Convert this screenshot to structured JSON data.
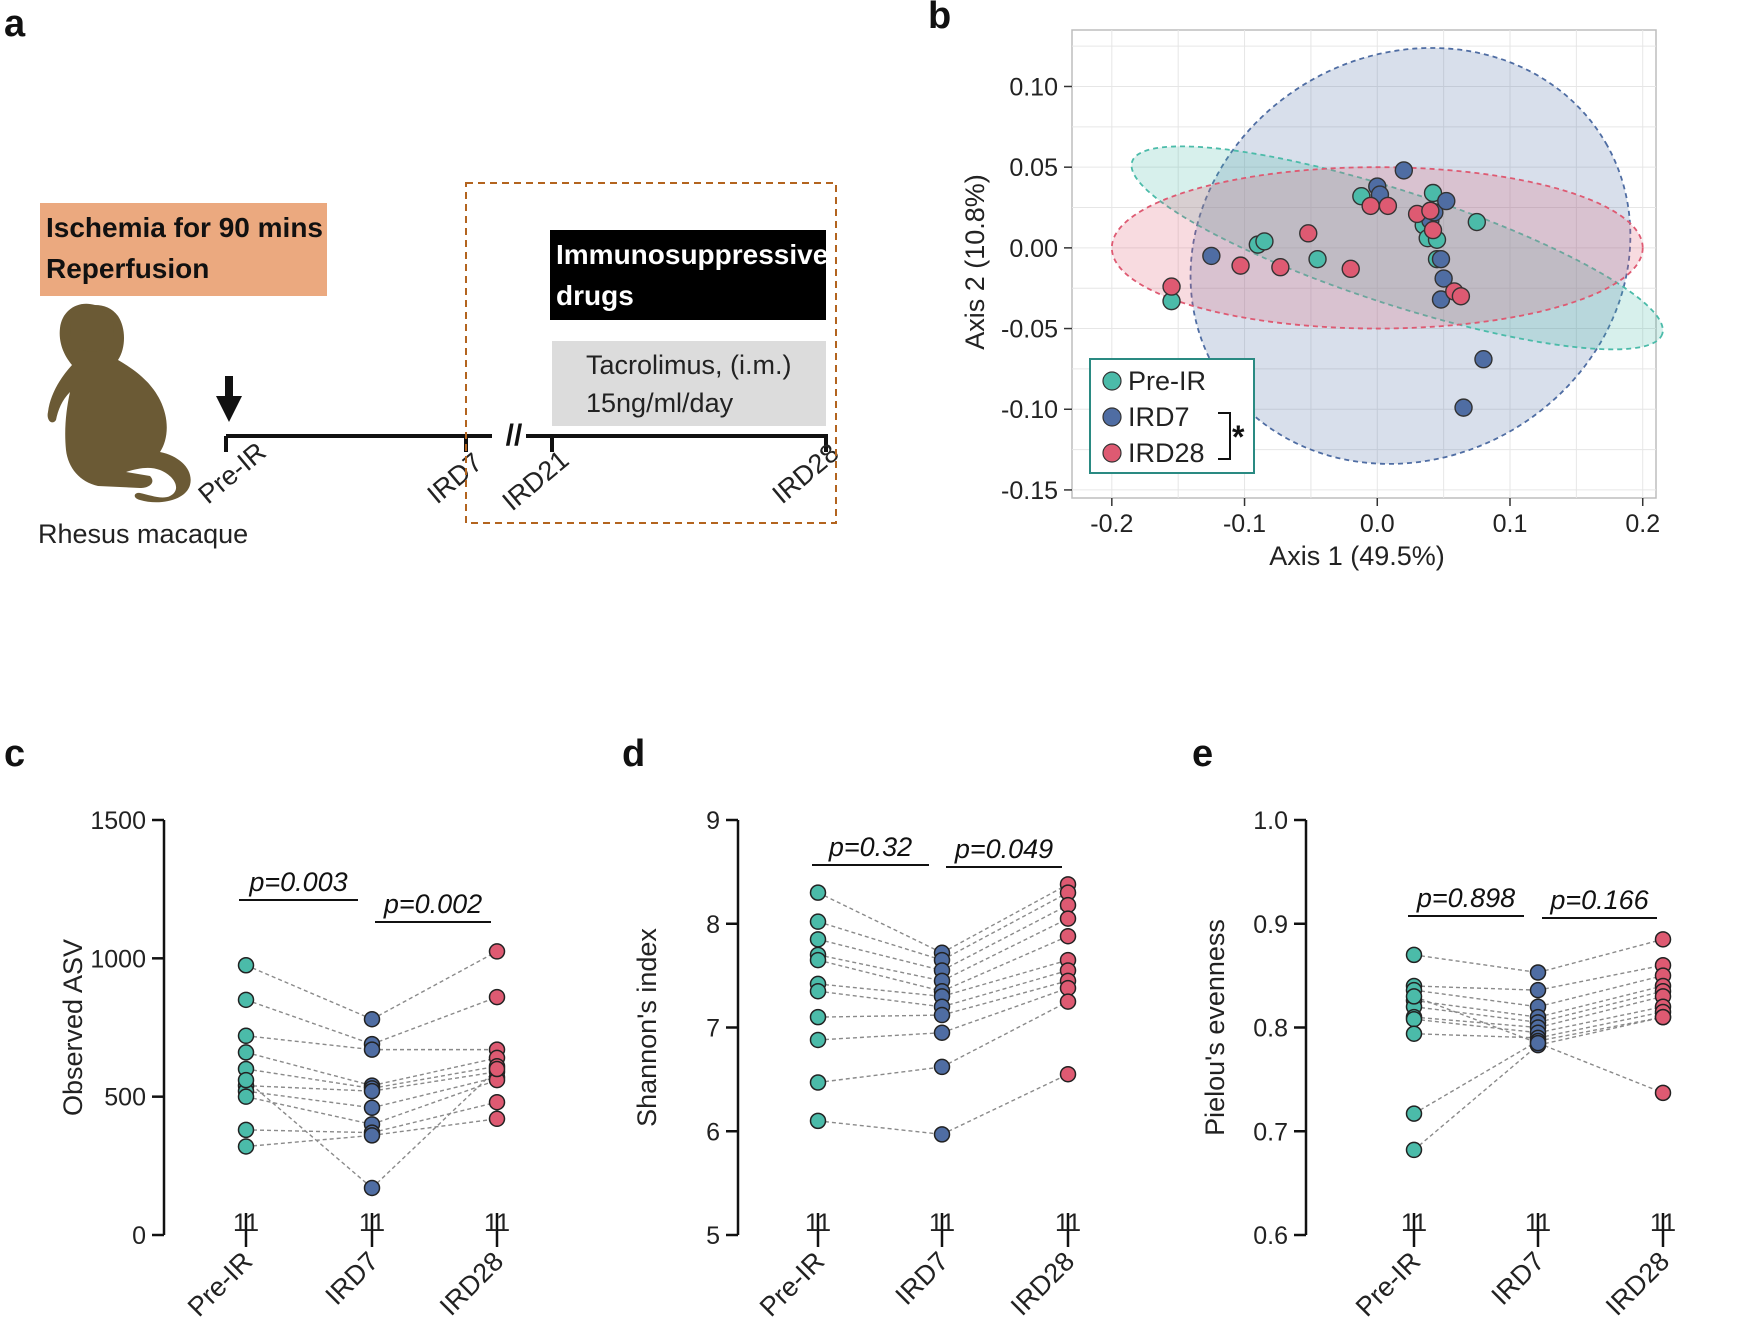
{
  "colors": {
    "pre": "#4BBBA9",
    "ird7": "#4F6DA3",
    "ird28": "#DE5A72",
    "orange": "#EBA97F",
    "brown": "#B3641F",
    "monkey": "#6B5A35"
  },
  "panel_a": {
    "label": "a",
    "box_line1": "Ischemia for 90 mins",
    "box_line2": "Reperfusion",
    "species": "Rhesus macaque",
    "drug_line1": "Immunosuppressive",
    "drug_line2": "drugs",
    "tac_line1": "Tacrolimus, (i.m.)",
    "tac_line2": "15ng/ml/day",
    "timepoints": [
      "Pre-IR",
      "IRD7",
      "IRD21",
      "IRD28"
    ],
    "break_mark": "//",
    "icons": [
      "monkey-silhouette-icon",
      "down-arrow-icon"
    ]
  },
  "chart_data": [
    {
      "panel": "b",
      "type": "scatter",
      "xlabel": "Axis 1 (49.5%)",
      "ylabel": "Axis 2 (10.8%)",
      "xlim": [
        -0.23,
        0.21
      ],
      "ylim": [
        -0.155,
        0.135
      ],
      "xticks": [
        "-0.2",
        "-0.1",
        "0.0",
        "0.1",
        "0.2"
      ],
      "yticks": [
        "0.10",
        "0.05",
        "0.00",
        "-0.05",
        "-0.10",
        "-0.15"
      ],
      "legend": [
        "Pre-IR",
        "IRD7",
        "IRD28"
      ],
      "significance": "*",
      "ellipses": [
        {
          "group": "IRD7",
          "cx": 0.025,
          "cy": -0.005,
          "rx": 0.17,
          "ry": 0.125,
          "angle_deg": -30
        },
        {
          "group": "Pre-IR",
          "cx": 0.015,
          "cy": 0.0,
          "rx": 0.21,
          "ry": 0.035,
          "angle_deg": 18
        },
        {
          "group": "IRD28",
          "cx": 0.0,
          "cy": 0.0,
          "rx": 0.2,
          "ry": 0.05,
          "angle_deg": 0
        }
      ],
      "series": [
        {
          "name": "Pre-IR",
          "points": [
            [
              -0.155,
              -0.033
            ],
            [
              -0.09,
              0.002
            ],
            [
              -0.085,
              0.004
            ],
            [
              -0.045,
              -0.007
            ],
            [
              -0.012,
              0.032
            ],
            [
              0.033,
              0.02
            ],
            [
              0.035,
              0.014
            ],
            [
              0.038,
              0.006
            ],
            [
              0.042,
              0.034
            ],
            [
              0.045,
              0.005
            ],
            [
              0.045,
              -0.007
            ],
            [
              0.075,
              0.016
            ]
          ]
        },
        {
          "name": "IRD7",
          "points": [
            [
              -0.125,
              -0.005
            ],
            [
              0.0,
              0.038
            ],
            [
              0.002,
              0.033
            ],
            [
              0.02,
              0.048
            ],
            [
              0.04,
              0.017
            ],
            [
              0.043,
              0.022
            ],
            [
              0.048,
              -0.007
            ],
            [
              0.052,
              0.029
            ],
            [
              0.05,
              -0.019
            ],
            [
              0.048,
              -0.032
            ],
            [
              0.08,
              -0.069
            ],
            [
              0.065,
              -0.099
            ]
          ]
        },
        {
          "name": "IRD28",
          "points": [
            [
              -0.155,
              -0.024
            ],
            [
              -0.103,
              -0.011
            ],
            [
              -0.073,
              -0.012
            ],
            [
              -0.052,
              0.009
            ],
            [
              -0.02,
              -0.013
            ],
            [
              -0.005,
              0.026
            ],
            [
              0.008,
              0.026
            ],
            [
              0.03,
              0.021
            ],
            [
              0.042,
              0.011
            ],
            [
              0.058,
              -0.027
            ],
            [
              0.063,
              -0.03
            ],
            [
              0.04,
              0.023
            ]
          ]
        }
      ]
    },
    {
      "panel": "c",
      "type": "scatter",
      "ylabel": "Observed ASV",
      "ylim": [
        0,
        1500
      ],
      "yticks": [
        "0",
        "500",
        "1000",
        "1500"
      ],
      "categories": [
        "Pre-IR",
        "IRD7",
        "IRD28"
      ],
      "n_labels": [
        "11",
        "11",
        "11"
      ],
      "pvalues": [
        "p=0.003",
        "p=0.002"
      ],
      "series": [
        {
          "name": "Pre-IR",
          "values": [
            975,
            850,
            720,
            660,
            600,
            540,
            520,
            500,
            380,
            320,
            560
          ]
        },
        {
          "name": "IRD7",
          "values": [
            780,
            690,
            670,
            540,
            530,
            520,
            460,
            400,
            370,
            360,
            170
          ]
        },
        {
          "name": "IRD28",
          "values": [
            1025,
            860,
            670,
            640,
            610,
            590,
            570,
            560,
            480,
            420,
            600
          ]
        }
      ]
    },
    {
      "panel": "d",
      "type": "scatter",
      "ylabel": "Shannon's index",
      "ylim": [
        5,
        9
      ],
      "yticks": [
        "5",
        "6",
        "7",
        "8",
        "9"
      ],
      "categories": [
        "Pre-IR",
        "IRD7",
        "IRD28"
      ],
      "n_labels": [
        "11",
        "11",
        "11"
      ],
      "pvalues": [
        "p=0.32",
        "p=0.049"
      ],
      "series": [
        {
          "name": "Pre-IR",
          "values": [
            8.3,
            8.02,
            7.85,
            7.7,
            7.65,
            7.42,
            7.35,
            7.1,
            6.88,
            6.47,
            6.1
          ]
        },
        {
          "name": "IRD7",
          "values": [
            7.72,
            7.65,
            7.55,
            7.45,
            7.35,
            7.3,
            7.2,
            7.12,
            6.95,
            6.62,
            5.97
          ]
        },
        {
          "name": "IRD28",
          "values": [
            8.38,
            8.3,
            8.18,
            8.05,
            7.88,
            7.65,
            7.55,
            7.45,
            7.38,
            7.25,
            6.55
          ]
        }
      ]
    },
    {
      "panel": "e",
      "type": "scatter",
      "ylabel": "Pielou's evenness",
      "ylim": [
        0.6,
        1.0
      ],
      "yticks": [
        "0.6",
        "0.7",
        "0.8",
        "0.9",
        "1.0"
      ],
      "categories": [
        "Pre-IR",
        "IRD7",
        "IRD28"
      ],
      "n_labels": [
        "11",
        "11",
        "11"
      ],
      "pvalues": [
        "p=0.898",
        "p=0.166"
      ],
      "series": [
        {
          "name": "Pre-IR",
          "values": [
            0.87,
            0.84,
            0.836,
            0.826,
            0.82,
            0.81,
            0.808,
            0.794,
            0.717,
            0.682,
            0.83
          ]
        },
        {
          "name": "IRD7",
          "values": [
            0.853,
            0.836,
            0.82,
            0.81,
            0.805,
            0.8,
            0.795,
            0.79,
            0.787,
            0.783,
            0.785
          ]
        },
        {
          "name": "IRD28",
          "values": [
            0.885,
            0.86,
            0.85,
            0.84,
            0.835,
            0.83,
            0.82,
            0.815,
            0.81,
            0.81,
            0.737
          ]
        }
      ]
    }
  ]
}
